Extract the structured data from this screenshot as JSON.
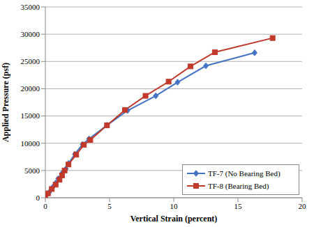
{
  "chart_data": {
    "type": "line",
    "x_label": "Vertical Strain (percent)",
    "y_label": "Applied Pressure (psf)",
    "xlim": [
      0,
      20
    ],
    "xticks": [
      0,
      5,
      10,
      15,
      20
    ],
    "ylim": [
      0,
      35000
    ],
    "yticks": [
      0,
      5000,
      10000,
      15000,
      20000,
      25000,
      30000,
      35000
    ],
    "grid": true,
    "legend": "lower right",
    "series": [
      {
        "name": "TF-7 (No Bearing Bed)",
        "color": "#4472c4",
        "marker": "diamond",
        "x": [
          0,
          0.3,
          0.6,
          0.8,
          1.0,
          1.3,
          1.6,
          1.8,
          2.3,
          2.9,
          3.4,
          4.8,
          6.4,
          8.6,
          10.3,
          12.5,
          16.3
        ],
        "values": [
          0,
          1000,
          2000,
          2700,
          3500,
          4500,
          5300,
          6300,
          8000,
          9800,
          10800,
          13300,
          16000,
          18700,
          21200,
          24200,
          26600
        ]
      },
      {
        "name": "TF-8 (Bearing Bed)",
        "color": "#c0392b",
        "marker": "square",
        "x": [
          0,
          0.2,
          0.5,
          0.8,
          1.1,
          1.3,
          1.5,
          1.8,
          2.4,
          3.0,
          3.5,
          4.8,
          6.2,
          7.8,
          9.6,
          11.3,
          13.2,
          17.7
        ],
        "values": [
          0,
          800,
          1600,
          2400,
          3300,
          4100,
          5000,
          6100,
          7900,
          9700,
          10600,
          13300,
          16100,
          18700,
          21300,
          24100,
          26700,
          29300
        ]
      }
    ]
  }
}
